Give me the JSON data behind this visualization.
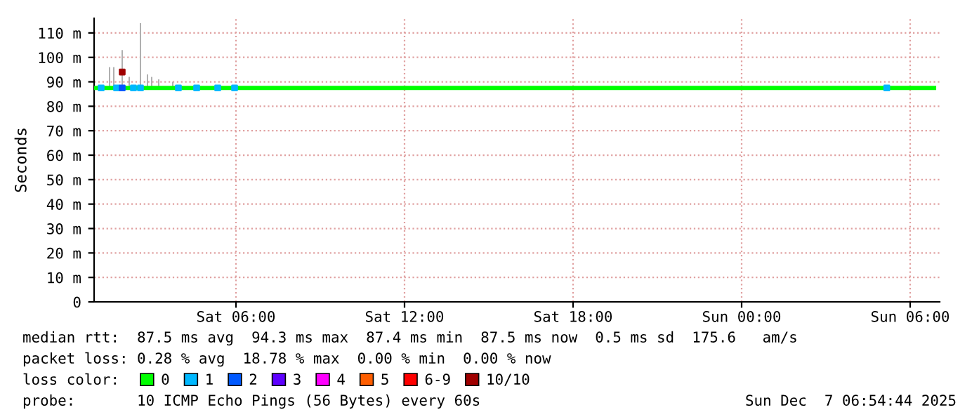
{
  "chart_data": {
    "type": "line",
    "ylabel": "Seconds",
    "xlim": [
      "2025-12-06T00:57",
      "2025-12-07T07:03"
    ],
    "xticks": [
      {
        "value": "2025-12-06T06:00",
        "label": "Sat 06:00"
      },
      {
        "value": "2025-12-06T12:00",
        "label": "Sat 12:00"
      },
      {
        "value": "2025-12-06T18:00",
        "label": "Sat 18:00"
      },
      {
        "value": "2025-12-07T00:00",
        "label": "Sun 00:00"
      },
      {
        "value": "2025-12-07T06:00",
        "label": "Sun 06:00"
      }
    ],
    "ylim": [
      0,
      116
    ],
    "yticks": [
      0,
      {
        "value": 10,
        "label": "10 m"
      },
      {
        "value": 20,
        "label": "20 m"
      },
      {
        "value": 30,
        "label": "30 m"
      },
      {
        "value": 40,
        "label": "40 m"
      },
      {
        "value": 50,
        "label": "50 m"
      },
      {
        "value": 60,
        "label": "60 m"
      },
      {
        "value": 70,
        "label": "70 m"
      },
      {
        "value": 80,
        "label": "80 m"
      },
      {
        "value": 90,
        "label": "90 m"
      },
      {
        "value": 100,
        "label": "100 m"
      },
      {
        "value": 110,
        "label": "110 m"
      }
    ],
    "grid": true,
    "legend": "bottom left",
    "legend_title": "loss color:",
    "series": [
      {
        "type": "bar",
        "color": "#b0b0b0",
        "x": [
          "2025-12-06T01:30",
          "2025-12-06T01:39",
          "2025-12-06T01:57",
          "2025-12-06T02:12",
          "2025-12-06T02:36",
          "2025-12-06T02:51",
          "2025-12-06T03:00",
          "2025-12-06T03:15",
          "2025-12-06T03:45"
        ],
        "base": [
          87,
          87,
          87,
          87,
          87,
          87,
          87,
          87,
          87
        ],
        "values": [
          9,
          9,
          16,
          5,
          27,
          6,
          5,
          4,
          3
        ]
      },
      {
        "name": "0",
        "color": "#00ff00",
        "x": [
          "2025-12-06T00:57",
          "2025-12-06T01:57",
          "2025-12-06T03:00",
          "2025-12-06T12:00",
          "2025-12-07T00:00",
          "2025-12-07T06:51"
        ],
        "values": [
          87.5,
          87.5,
          87.5,
          87.5,
          87.5,
          87.5
        ]
      },
      {
        "type": "scatter",
        "name": "1",
        "color": "#00b8ff",
        "x": [
          "2025-12-06T01:12",
          "2025-12-06T01:45",
          "2025-12-06T02:21",
          "2025-12-06T02:36",
          "2025-12-06T03:57",
          "2025-12-06T04:36",
          "2025-12-06T05:21",
          "2025-12-06T05:57",
          "2025-12-07T05:10"
        ],
        "values": [
          87.5,
          87.5,
          87.5,
          87.5,
          87.5,
          87.5,
          87.5,
          87.5,
          87.5
        ]
      },
      {
        "type": "scatter",
        "name": "2",
        "color": "#0059ff",
        "x": [
          "2025-12-06T01:57"
        ],
        "values": [
          87.5
        ]
      },
      {
        "type": "scatter",
        "name": "3",
        "color": "#5e00ff"
      },
      {
        "type": "scatter",
        "name": "4",
        "color": "#ff00ff"
      },
      {
        "type": "scatter",
        "name": "5",
        "color": "#ff5e00"
      },
      {
        "type": "scatter",
        "name": "6-9",
        "color": "#ff0000"
      },
      {
        "type": "scatter",
        "name": "10/10",
        "color": "#a00000",
        "x": [
          "2025-12-06T01:57"
        ],
        "values": [
          94
        ]
      }
    ],
    "annotations": [
      "median rtt:  87.5 ms avg  94.3 ms max  87.4 ms min  87.5 ms now  0.5 ms sd  175.6   am/s",
      "packet loss: 0.28 % avg  18.78 % max  0.00 % min  0.00 % now",
      "probe:       10 ICMP Echo Pings (56 Bytes) every 60s",
      "Sun Dec  7 06:54:44 2025"
    ]
  }
}
